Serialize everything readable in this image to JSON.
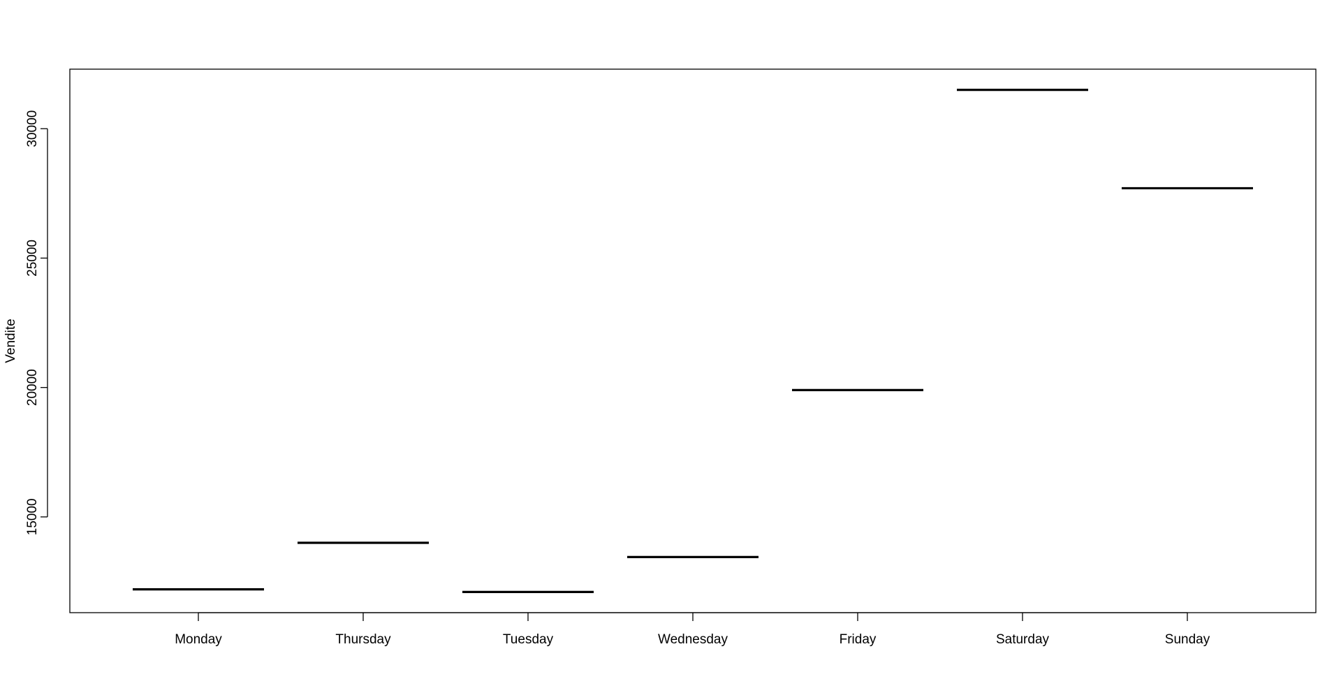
{
  "chart_data": {
    "type": "bar",
    "style": "horizontal-level-segments",
    "categories": [
      "Monday",
      "Thursday",
      "Tuesday",
      "Wednesday",
      "Friday",
      "Saturday",
      "Sunday"
    ],
    "values": [
      12200,
      14000,
      12100,
      13450,
      19900,
      31500,
      27700
    ],
    "ylabel": "Vendite",
    "xlabel": "",
    "title": "",
    "ylim": [
      11300,
      32300
    ],
    "yticks": [
      15000,
      20000,
      25000,
      30000
    ],
    "ytick_labels": [
      "15000",
      "20000",
      "25000",
      "30000"
    ],
    "grid": false,
    "legend": "none",
    "colors": {
      "line": "#000000",
      "frame": "#000000",
      "background": "#ffffff"
    }
  }
}
